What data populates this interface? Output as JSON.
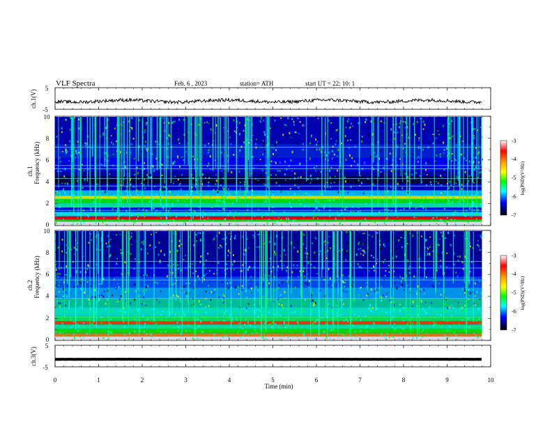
{
  "header": {
    "title": "VLF  Spectra",
    "date": "Feb. 6   , 2023",
    "station": "station= ATH",
    "start_ut": "start  UT  =    22: 10: 1"
  },
  "panels": {
    "ch1_wave_label": "ch.1(V)",
    "ch1_spec_label_1": "ch.1",
    "ch1_spec_label_2": "Frequency  (kHz)",
    "ch2_spec_label_1": "ch.2",
    "ch2_spec_label_2": "Frequency  (kHz)",
    "ch3_wave_label": "ch.3(V)",
    "x_label": "Time  (min)"
  },
  "colorbar": {
    "label": "log(PSD)(V²/Hz)",
    "ticks": [
      "-3",
      "-4",
      "-5",
      "-6",
      "-7"
    ],
    "colors": [
      "#ffffff",
      "#ff0000",
      "#ffa500",
      "#ffff00",
      "#00ff00",
      "#00ffff",
      "#0000ff",
      "#000000"
    ]
  },
  "chart_data": [
    {
      "type": "line",
      "ylabel": "ch.1(V)",
      "ylim": [
        -5,
        5
      ],
      "yticks": [
        "5",
        "-5"
      ],
      "x_range": [
        0,
        9.8
      ],
      "level": -1.2
    },
    {
      "type": "heatmap",
      "ylabel": "ch.1 Frequency (kHz)",
      "ylim": [
        0,
        10
      ],
      "yticks": [
        "10",
        "8",
        "6",
        "4",
        "2",
        "0"
      ],
      "zlim": [
        -7,
        -3
      ]
    },
    {
      "type": "heatmap",
      "ylabel": "ch.2 Frequency (kHz)",
      "ylim": [
        0,
        10
      ],
      "yticks": [
        "10",
        "8",
        "6",
        "4",
        "2",
        "0"
      ],
      "zlim": [
        -7,
        -3
      ]
    },
    {
      "type": "line",
      "ylabel": "ch.3(V)",
      "ylim": [
        -5,
        5
      ],
      "yticks": [
        "5",
        "-5"
      ],
      "level": -1.5
    }
  ],
  "x_axis": {
    "label": "Time  (min)",
    "ticks": [
      "0",
      "1",
      "2",
      "3",
      "4",
      "5",
      "6",
      "7",
      "8",
      "9",
      "10"
    ],
    "xlim": [
      0,
      10
    ]
  }
}
